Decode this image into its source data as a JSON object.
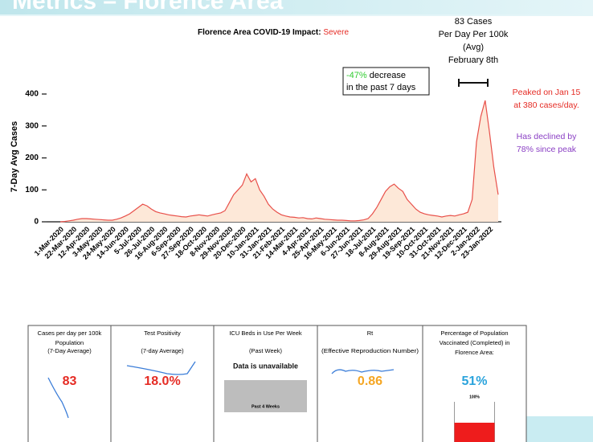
{
  "header": {
    "title": "Metrics – Florence Area"
  },
  "chart_data": {
    "type": "area",
    "title": "Florence Area COVID-19 Impact: ",
    "title_status": "Severe",
    "y_label": "7-Day Avg Cases",
    "color": "#e8504a",
    "fill": "#fde8d8",
    "ylim": [
      0,
      400
    ],
    "yticks": [
      0,
      100,
      200,
      300,
      400
    ],
    "categories": [
      "1-Mar-2020",
      null,
      null,
      "22-Mar-2020",
      null,
      null,
      "12-Apr-2020",
      null,
      null,
      "3-May-2020",
      null,
      null,
      "24-May-2020",
      null,
      null,
      "14-Jun-2020",
      null,
      null,
      "5-Jul-2020",
      null,
      null,
      "26-Jul-2020",
      null,
      null,
      "16-Aug-2020",
      null,
      null,
      "6-Sep-2020",
      null,
      null,
      "27-Sep-2020",
      null,
      null,
      "18-Oct-2020",
      null,
      null,
      "8-Nov-2020",
      null,
      null,
      "29-Nov-2020",
      null,
      null,
      "20-Dec-2020",
      null,
      null,
      "10-Jan-2021",
      null,
      null,
      "31-Jan-2021",
      null,
      null,
      "21-Feb-2021",
      null,
      null,
      "14-Mar-2021",
      null,
      null,
      "4-Apr-2021",
      null,
      null,
      "25-Apr-2021",
      null,
      null,
      "16-May-2021",
      null,
      null,
      "6-Jun-2021",
      null,
      null,
      "27-Jun-2021",
      null,
      null,
      "18-Jul-2021",
      null,
      null,
      "8-Aug-2021",
      null,
      null,
      "29-Aug-2021",
      null,
      null,
      "19-Sep-2021",
      null,
      null,
      "10-Oct-2021",
      null,
      null,
      "31-Oct-2021",
      null,
      null,
      "21-Nov-2021",
      null,
      null,
      "12-Dec-2021",
      null,
      null,
      "2-Jan-2022",
      null,
      null,
      "23-Jan-2022",
      null,
      null
    ],
    "values": [
      0,
      1,
      3,
      5,
      8,
      10,
      10,
      9,
      8,
      7,
      6,
      5,
      5,
      8,
      12,
      18,
      25,
      35,
      45,
      55,
      50,
      40,
      32,
      28,
      25,
      22,
      20,
      18,
      16,
      15,
      18,
      20,
      22,
      20,
      18,
      22,
      25,
      28,
      35,
      60,
      85,
      100,
      115,
      150,
      125,
      135,
      100,
      80,
      55,
      40,
      30,
      22,
      18,
      15,
      14,
      12,
      13,
      10,
      9,
      12,
      10,
      8,
      7,
      6,
      5,
      5,
      4,
      3,
      3,
      4,
      6,
      10,
      25,
      45,
      70,
      95,
      110,
      118,
      105,
      95,
      70,
      55,
      40,
      30,
      25,
      22,
      20,
      18,
      15,
      18,
      20,
      18,
      22,
      25,
      30,
      70,
      250,
      330,
      380,
      280,
      170,
      85
    ]
  },
  "annotations": {
    "decrease_pct": "-47%",
    "decrease_text": " decrease",
    "decrease_text2": "in the past 7 days",
    "avg": [
      "83 Cases",
      "Per Day Per 100k",
      "(Avg)",
      "February 8th"
    ],
    "peak": [
      "Peaked on Jan 15",
      "at 380 cases/day."
    ],
    "decline": [
      "Has declined by",
      "78% since peak"
    ]
  },
  "cards": [
    {
      "title": [
        "Cases per day per 100k",
        "Population"
      ],
      "subtitle": "(7-Day Average)",
      "value": "83",
      "value_color": "#e52b24"
    },
    {
      "title": [
        "Test Positivity"
      ],
      "subtitle": "(7-day Average)",
      "value": "18.0%",
      "value_color": "#e52b24"
    },
    {
      "title": [
        "ICU Beds in Use Per Week"
      ],
      "subtitle": "(Past Week)",
      "value": "Data is unavailable",
      "value_color": "#111111",
      "note": "Past 4 Weeks"
    },
    {
      "title": [
        "Rt"
      ],
      "subtitle": "(Effective Reproduction Number)",
      "value": "0.86",
      "value_color": "#f5a623"
    },
    {
      "title": [
        "Percentage of Population",
        "Vaccinated (Completed) in",
        "Florence Area:"
      ],
      "value": "51%",
      "value_color": "#2aa3dc",
      "note": "100%"
    }
  ]
}
